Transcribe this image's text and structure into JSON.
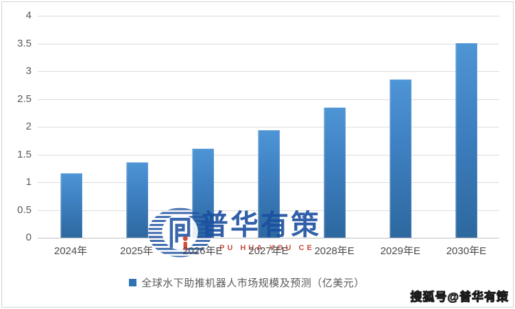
{
  "chart_data": {
    "type": "bar",
    "title": "",
    "xlabel": "",
    "ylabel": "",
    "categories": [
      "2024年",
      "2025年",
      "2026年E",
      "2027年E",
      "2028年E",
      "2029年E",
      "2030年E"
    ],
    "values": [
      1.16,
      1.36,
      1.6,
      1.94,
      2.34,
      2.85,
      3.51
    ],
    "series_name": "全球水下助推机器人市场规模及预测（亿美元）",
    "unit": "亿美元",
    "ylim": [
      0,
      4
    ],
    "ytick_step": 0.5,
    "yticks": [
      "0",
      "0.5",
      "1",
      "1.5",
      "2",
      "2.5",
      "3",
      "3.5",
      "4"
    ],
    "grid": true,
    "legend_position": "bottom",
    "bar_color_top": "#4e95d6",
    "bar_color_bottom": "#2d689f",
    "gridline_color": "#dcdcdc"
  },
  "legend": {
    "marker_color": "#2e74b5",
    "label": "全球水下助推机器人市场规模及预测（亿美元）"
  },
  "watermark": {
    "logo_icon": "puhua-striped-globe-p-icon",
    "logo_text": "普华有策",
    "logo_subtext": "PU HUA YOU CE",
    "blue": "#1b4fa0",
    "red": "#c0392b"
  },
  "footer_watermark": {
    "text": "搜狐号@普华有策"
  }
}
